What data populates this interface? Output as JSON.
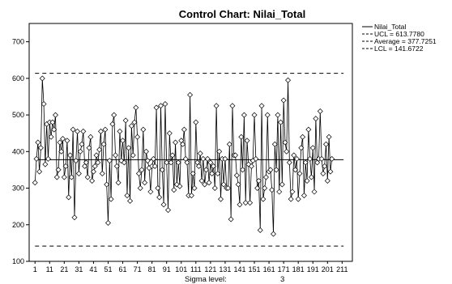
{
  "chart_data": {
    "type": "line",
    "title": "Control Chart: Nilai_Total",
    "xlabel": "",
    "ylabel": "",
    "ylim": [
      100,
      750
    ],
    "xlim": [
      -3,
      218
    ],
    "yticks": [
      "100",
      "200",
      "300",
      "400",
      "500",
      "600",
      "700"
    ],
    "xticks": [
      "1",
      "11",
      "21",
      "31",
      "41",
      "51",
      "61",
      "71",
      "81",
      "91",
      "101",
      "111",
      "121",
      "131",
      "141",
      "151",
      "161",
      "171",
      "181",
      "191",
      "201",
      "211"
    ],
    "legend": {
      "placement": "top-right",
      "entries": [
        "Nilai_Total",
        "UCL = 613.7780",
        "Average = 377.7251",
        "LCL = 141.6722"
      ]
    },
    "ucl": 613.778,
    "average": 377.7251,
    "lcl": 141.6722,
    "sigma_label": "Sigma level:",
    "sigma_value": "3",
    "grid": false,
    "series": [
      {
        "name": "Nilai_Total",
        "x_start": 1,
        "values": [
          315,
          380,
          425,
          345,
          410,
          600,
          530,
          365,
          475,
          380,
          480,
          440,
          480,
          460,
          500,
          330,
          350,
          425,
          400,
          435,
          330,
          360,
          430,
          275,
          390,
          330,
          460,
          220,
          375,
          455,
          340,
          400,
          420,
          455,
          360,
          370,
          330,
          410,
          440,
          320,
          345,
          360,
          390,
          370,
          405,
          455,
          340,
          420,
          460,
          310,
          205,
          375,
          270,
          475,
          500,
          390,
          360,
          315,
          455,
          375,
          430,
          370,
          485,
          280,
          410,
          265,
          470,
          390,
          480,
          520,
          440,
          340,
          300,
          350,
          460,
          315,
          400,
          375,
          355,
          290,
          360,
          380,
          360,
          520,
          300,
          275,
          525,
          350,
          255,
          530,
          370,
          240,
          450,
          370,
          390,
          295,
          425,
          310,
          370,
          305,
          430,
          420,
          460,
          380,
          370,
          280,
          555,
          280,
          340,
          300,
          480,
          370,
          360,
          395,
          320,
          380,
          310,
          350,
          380,
          315,
          370,
          340,
          360,
          300,
          525,
          340,
          400,
          270,
          380,
          310,
          380,
          300,
          300,
          420,
          215,
          525,
          390,
          390,
          335,
          310,
          255,
          440,
          350,
          500,
          260,
          430,
          365,
          260,
          360,
          375,
          500,
          380,
          300,
          320,
          185,
          525,
          270,
          300,
          330,
          500,
          345,
          350,
          295,
          175,
          420,
          350,
          500,
          290,
          480,
          310,
          540,
          425,
          400,
          595,
          370,
          270,
          290,
          390,
          350,
          380,
          270,
          340,
          410,
          440,
          280,
          370,
          320,
          460,
          380,
          330,
          410,
          290,
          490,
          370,
          380,
          510,
          380,
          340,
          360,
          420,
          320,
          440,
          345,
          380
        ]
      }
    ]
  }
}
